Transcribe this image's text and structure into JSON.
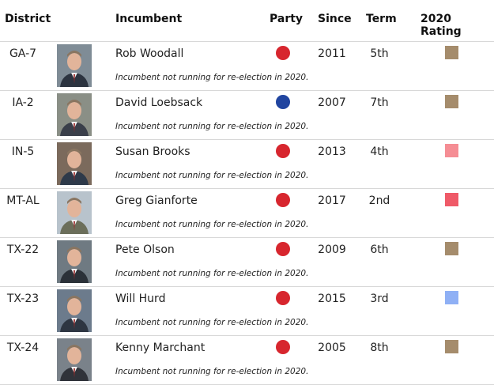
{
  "headers": {
    "district": "District",
    "incumbent": "Incumbent",
    "party": "Party",
    "since": "Since",
    "term": "Term",
    "rating": "2020 Rating"
  },
  "note_text": "Incumbent not running for re-election in 2020.",
  "colors": {
    "republican": "#d7262e",
    "democrat": "#2145a0",
    "open_seat": "#a58c6c",
    "lean_r": "#f58d94",
    "likely_r": "#ef5a68",
    "tossup_d": "#8fb0f5"
  },
  "rows": [
    {
      "district": "GA-7",
      "incumbent": "Rob Woodall",
      "party_color": "#d7262e",
      "since": "2011",
      "term": "5th",
      "rating_color": "#a58c6c",
      "note": "Incumbent not running for re-election in 2020."
    },
    {
      "district": "IA-2",
      "incumbent": "David Loebsack",
      "party_color": "#2145a0",
      "since": "2007",
      "term": "7th",
      "rating_color": "#a58c6c",
      "note": "Incumbent not running for re-election in 2020."
    },
    {
      "district": "IN-5",
      "incumbent": "Susan Brooks",
      "party_color": "#d7262e",
      "since": "2013",
      "term": "4th",
      "rating_color": "#f58d94",
      "note": "Incumbent not running for re-election in 2020."
    },
    {
      "district": "MT-AL",
      "incumbent": "Greg Gianforte",
      "party_color": "#d7262e",
      "since": "2017",
      "term": "2nd",
      "rating_color": "#ef5a68",
      "note": "Incumbent not running for re-election in 2020."
    },
    {
      "district": "TX-22",
      "incumbent": "Pete Olson",
      "party_color": "#d7262e",
      "since": "2009",
      "term": "6th",
      "rating_color": "#a58c6c",
      "note": "Incumbent not running for re-election in 2020."
    },
    {
      "district": "TX-23",
      "incumbent": "Will Hurd",
      "party_color": "#d7262e",
      "since": "2015",
      "term": "3rd",
      "rating_color": "#8fb0f5",
      "note": "Incumbent not running for re-election in 2020."
    },
    {
      "district": "TX-24",
      "incumbent": "Kenny Marchant",
      "party_color": "#d7262e",
      "since": "2005",
      "term": "8th",
      "rating_color": "#a58c6c",
      "note": "Incumbent not running for re-election in 2020."
    }
  ]
}
